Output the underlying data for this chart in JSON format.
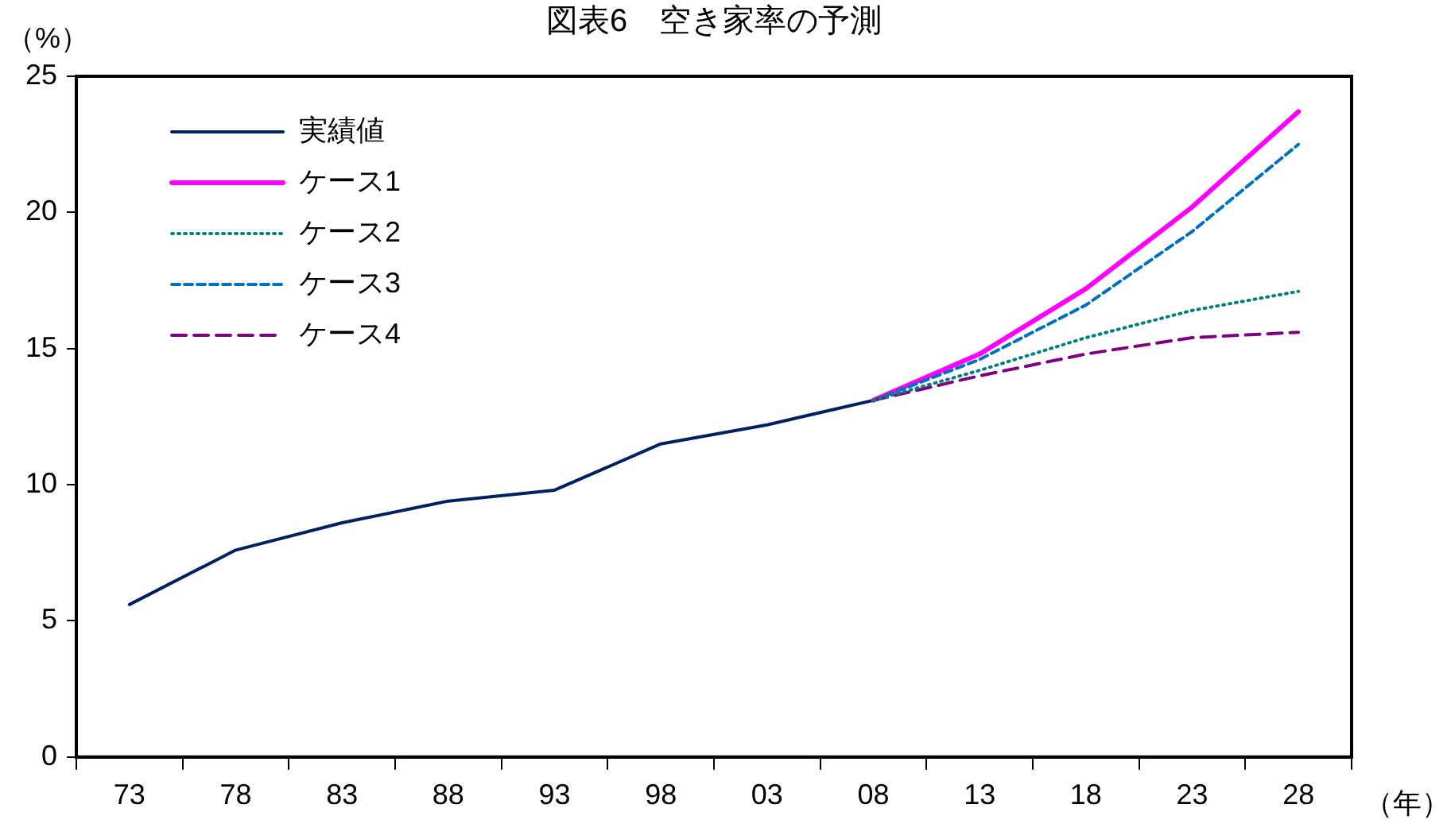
{
  "chart_data": {
    "type": "line",
    "title": "図表6　空き家率の予測",
    "ylabel": "（%）",
    "xlabel": "（年）",
    "categories": [
      "73",
      "78",
      "83",
      "88",
      "93",
      "98",
      "03",
      "08",
      "13",
      "18",
      "23",
      "28"
    ],
    "ylim": [
      0,
      25
    ],
    "yticks": [
      0,
      5,
      10,
      15,
      20,
      25
    ],
    "grid": false,
    "legend": "top left",
    "marker": "none",
    "series": [
      {
        "name": "実績値",
        "color": "#002060",
        "line_style": "solid",
        "values": [
          5.6,
          7.6,
          8.6,
          9.4,
          9.8,
          11.5,
          12.2,
          13.1,
          null,
          null,
          null,
          null
        ]
      },
      {
        "name": "ケース1",
        "color": "#ff00ff",
        "line_style": "solid",
        "values": [
          null,
          null,
          null,
          null,
          null,
          null,
          null,
          13.1,
          14.8,
          17.2,
          20.2,
          23.7
        ]
      },
      {
        "name": "ケース2",
        "color": "#008080",
        "line_style": "dotted",
        "values": [
          null,
          null,
          null,
          null,
          null,
          null,
          null,
          13.1,
          14.2,
          15.4,
          16.4,
          17.1
        ]
      },
      {
        "name": "ケース3",
        "color": "#0070c0",
        "line_style": "dashed",
        "values": [
          null,
          null,
          null,
          null,
          null,
          null,
          null,
          13.1,
          14.6,
          16.6,
          19.3,
          22.5
        ]
      },
      {
        "name": "ケース4",
        "color": "#800080",
        "line_style": "dashed",
        "values": [
          null,
          null,
          null,
          null,
          null,
          null,
          null,
          13.1,
          14.0,
          14.8,
          15.4,
          15.6
        ]
      }
    ]
  }
}
